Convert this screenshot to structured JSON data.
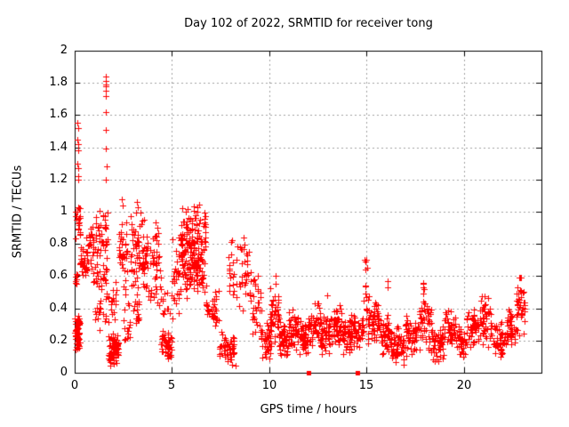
{
  "chart_data": {
    "type": "scatter",
    "title": "Day 102 of 2022, SRMTID for receiver tong",
    "xlabel": "GPS time / hours",
    "ylabel": "SRMTID / TECUs",
    "xlim": [
      0,
      24
    ],
    "ylim": [
      0,
      2
    ],
    "grid": true,
    "grid_style": "dashed",
    "grid_color": "#a0a0a0",
    "marker": "plus",
    "marker_color": "#ff0000",
    "axis_color": "#000000",
    "background_color": "#ffffff",
    "x_ticks": {
      "values": [
        0,
        5,
        10,
        15,
        20
      ],
      "labels": [
        "0",
        "5",
        "10",
        "15",
        "20"
      ]
    },
    "y_ticks": {
      "values": [
        0,
        0.2,
        0.4,
        0.6,
        0.8,
        1,
        1.2,
        1.4,
        1.6,
        1.8,
        2
      ],
      "labels": [
        "0",
        "0.2",
        "0.4",
        "0.6",
        "0.8",
        "1",
        "1.2",
        "1.4",
        "1.6",
        "1.8",
        "2"
      ]
    },
    "zero_markers": {
      "shape": "filled-square",
      "color": "#ff0000",
      "x": [
        12.0,
        14.55
      ],
      "y": 0
    },
    "points": [
      [
        0.14,
        1.55
      ],
      [
        0.17,
        1.52
      ],
      [
        0.15,
        1.45
      ],
      [
        0.18,
        1.42
      ],
      [
        0.16,
        1.38
      ],
      [
        0.14,
        1.3
      ],
      [
        0.19,
        1.27
      ],
      [
        0.17,
        1.22
      ],
      [
        0.2,
        1.2
      ],
      [
        1.58,
        1.84
      ],
      [
        1.6,
        1.81
      ],
      [
        1.59,
        1.79
      ],
      [
        1.62,
        1.78
      ],
      [
        1.6,
        1.75
      ],
      [
        1.61,
        1.72
      ],
      [
        1.6,
        1.62
      ],
      [
        1.62,
        1.51
      ],
      [
        1.59,
        1.39
      ],
      [
        1.63,
        1.28
      ],
      [
        1.58,
        1.2
      ],
      [
        2.42,
        1.08
      ],
      [
        2.47,
        1.04
      ],
      [
        3.18,
        1.06
      ],
      [
        3.24,
        1.03
      ],
      [
        10.32,
        0.6
      ],
      [
        10.35,
        0.55
      ],
      [
        13.0,
        0.48
      ],
      [
        14.9,
        0.7
      ],
      [
        14.93,
        0.64
      ],
      [
        16.08,
        0.57
      ],
      [
        16.1,
        0.53
      ],
      [
        17.93,
        0.49
      ]
    ],
    "cluster_fields": [
      "x_start",
      "x_end",
      "y_min",
      "y_max",
      "count",
      "distribution"
    ],
    "clusters": [
      [
        0.0,
        0.28,
        0.13,
        0.36,
        55,
        "c"
      ],
      [
        0.0,
        0.12,
        0.5,
        0.7,
        8,
        "u"
      ],
      [
        0.02,
        0.3,
        0.78,
        1.05,
        22,
        "c"
      ],
      [
        0.28,
        0.7,
        0.55,
        0.82,
        30,
        "c"
      ],
      [
        0.55,
        0.95,
        0.6,
        1.0,
        26,
        "c"
      ],
      [
        0.95,
        1.4,
        0.45,
        1.02,
        38,
        "c"
      ],
      [
        1.0,
        1.35,
        0.25,
        0.45,
        12,
        "u"
      ],
      [
        1.42,
        1.7,
        0.5,
        1.05,
        30,
        "c"
      ],
      [
        1.45,
        1.75,
        0.3,
        0.5,
        10,
        "u"
      ],
      [
        1.75,
        2.25,
        0.03,
        0.26,
        70,
        "c"
      ],
      [
        1.85,
        2.15,
        0.28,
        0.58,
        15,
        "u"
      ],
      [
        2.25,
        2.7,
        0.45,
        1.0,
        40,
        "c"
      ],
      [
        2.5,
        2.85,
        0.2,
        0.45,
        15,
        "u"
      ],
      [
        2.85,
        3.45,
        0.5,
        1.05,
        45,
        "c"
      ],
      [
        3.0,
        3.4,
        0.3,
        0.5,
        15,
        "u"
      ],
      [
        3.45,
        3.8,
        0.4,
        1.0,
        35,
        "c"
      ],
      [
        3.85,
        4.45,
        0.35,
        1.05,
        45,
        "c"
      ],
      [
        4.45,
        5.0,
        0.05,
        0.3,
        50,
        "c"
      ],
      [
        4.5,
        4.95,
        0.35,
        0.55,
        10,
        "u"
      ],
      [
        5.0,
        5.45,
        0.3,
        0.9,
        30,
        "c"
      ],
      [
        5.45,
        6.0,
        0.45,
        1.16,
        65,
        "c"
      ],
      [
        6.0,
        6.35,
        0.5,
        1.08,
        50,
        "c"
      ],
      [
        6.35,
        6.75,
        0.45,
        1.08,
        40,
        "c"
      ],
      [
        5.5,
        6.7,
        0.5,
        0.78,
        40,
        "c"
      ],
      [
        6.75,
        7.45,
        0.25,
        0.55,
        35,
        "c"
      ],
      [
        7.45,
        8.3,
        0.03,
        0.27,
        60,
        "c"
      ],
      [
        7.9,
        8.2,
        0.35,
        0.95,
        18,
        "c"
      ],
      [
        8.3,
        9.1,
        0.35,
        0.87,
        40,
        "c"
      ],
      [
        9.1,
        9.6,
        0.2,
        0.62,
        28,
        "c"
      ],
      [
        9.6,
        10.1,
        0.08,
        0.35,
        45,
        "c"
      ],
      [
        10.05,
        10.5,
        0.15,
        0.55,
        45,
        "c"
      ],
      [
        10.5,
        10.95,
        0.08,
        0.33,
        45,
        "c"
      ],
      [
        10.95,
        11.5,
        0.12,
        0.42,
        48,
        "c"
      ],
      [
        11.5,
        12.0,
        0.08,
        0.36,
        48,
        "c"
      ],
      [
        12.0,
        12.65,
        0.15,
        0.46,
        50,
        "c"
      ],
      [
        12.65,
        13.15,
        0.1,
        0.38,
        45,
        "c"
      ],
      [
        13.15,
        13.75,
        0.15,
        0.45,
        50,
        "c"
      ],
      [
        13.75,
        14.35,
        0.1,
        0.38,
        45,
        "c"
      ],
      [
        14.35,
        14.85,
        0.12,
        0.4,
        40,
        "c"
      ],
      [
        14.85,
        15.05,
        0.3,
        0.72,
        12,
        "u"
      ],
      [
        15.05,
        15.65,
        0.15,
        0.52,
        50,
        "c"
      ],
      [
        15.65,
        16.2,
        0.1,
        0.4,
        42,
        "c"
      ],
      [
        16.2,
        17.0,
        0.04,
        0.3,
        60,
        "c"
      ],
      [
        17.0,
        17.7,
        0.1,
        0.38,
        50,
        "c"
      ],
      [
        17.7,
        18.35,
        0.12,
        0.5,
        50,
        "c"
      ],
      [
        17.88,
        18.0,
        0.4,
        0.56,
        5,
        "u"
      ],
      [
        18.35,
        19.0,
        0.04,
        0.3,
        55,
        "c"
      ],
      [
        19.0,
        19.6,
        0.12,
        0.43,
        45,
        "c"
      ],
      [
        19.6,
        20.15,
        0.07,
        0.3,
        40,
        "c"
      ],
      [
        20.15,
        20.75,
        0.12,
        0.42,
        45,
        "c"
      ],
      [
        20.75,
        21.5,
        0.15,
        0.5,
        50,
        "c"
      ],
      [
        21.5,
        22.2,
        0.08,
        0.35,
        45,
        "c"
      ],
      [
        22.2,
        22.7,
        0.15,
        0.42,
        40,
        "c"
      ],
      [
        22.7,
        23.15,
        0.2,
        0.62,
        40,
        "c"
      ]
    ],
    "seed": 7
  }
}
